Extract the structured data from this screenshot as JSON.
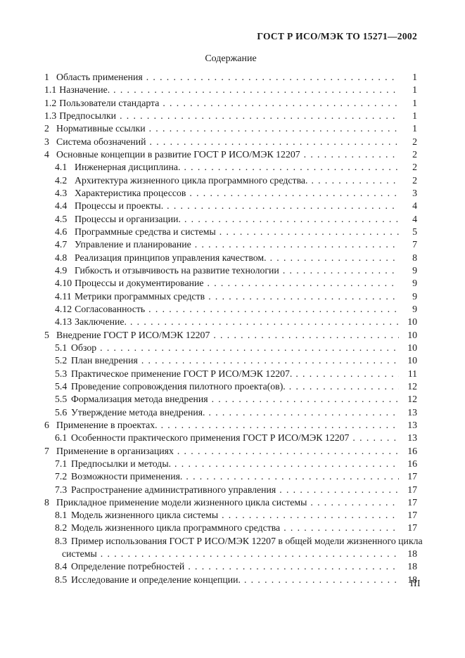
{
  "doc": {
    "header": "ГОСТ Р ИСО/МЭК ТО 15271—2002",
    "title": "Содержание",
    "footer_page": "III"
  },
  "toc": {
    "items": [
      {
        "num": "1",
        "level": 1,
        "label": "Область применения",
        "page": "1"
      },
      {
        "num": "1.1",
        "level": 1,
        "label": "Назначение.",
        "page": "1"
      },
      {
        "num": "1.2",
        "level": 1,
        "label": "Пользователи стандарта",
        "page": "1"
      },
      {
        "num": "1.3",
        "level": 1,
        "label": "Предпосылки",
        "page": "1"
      },
      {
        "num": "2",
        "level": 1,
        "label": "Нормативные ссылки",
        "page": "1"
      },
      {
        "num": "3",
        "level": 1,
        "label": "Система обозначений",
        "page": "2"
      },
      {
        "num": "4",
        "level": 1,
        "label": "Основные концепции в развитие ГОСТ Р ИСО/МЭК 12207",
        "page": "2"
      },
      {
        "num": "4.1",
        "level": 2,
        "wide": true,
        "label": "Инженерная дисциплина.",
        "page": "2"
      },
      {
        "num": "4.2",
        "level": 2,
        "wide": true,
        "label": "Архитектура жизненного цикла программного средства.",
        "page": "2"
      },
      {
        "num": "4.3",
        "level": 2,
        "wide": true,
        "label": "Характеристика процессов",
        "page": "3"
      },
      {
        "num": "4.4",
        "level": 2,
        "wide": true,
        "label": "Процессы и проекты.",
        "page": "4"
      },
      {
        "num": "4.5",
        "level": 2,
        "wide": true,
        "label": "Процессы и организации.",
        "page": "4"
      },
      {
        "num": "4.6",
        "level": 2,
        "wide": true,
        "label": "Программные средства и системы",
        "page": "5"
      },
      {
        "num": "4.7",
        "level": 2,
        "wide": true,
        "label": "Управление и планирование",
        "page": "7"
      },
      {
        "num": "4.8",
        "level": 2,
        "wide": true,
        "label": "Реализация принципов управления качеством.",
        "page": "8"
      },
      {
        "num": "4.9",
        "level": 2,
        "wide": true,
        "label": "Гибкость и отзывчивость на развитие технологии",
        "page": "9"
      },
      {
        "num": "4.10",
        "level": 2,
        "wide": true,
        "label": "Процессы и документирование",
        "page": "9"
      },
      {
        "num": "4.11",
        "level": 2,
        "wide": true,
        "label": "Метрики программных средств",
        "page": "9"
      },
      {
        "num": "4.12",
        "level": 2,
        "wide": true,
        "label": "Согласованность",
        "page": "9"
      },
      {
        "num": "4.13",
        "level": 2,
        "wide": true,
        "label": "Заключение.",
        "page": "10"
      },
      {
        "num": "5",
        "level": 1,
        "label": "Внедрение ГОСТ Р ИСО/МЭК 12207",
        "page": "10"
      },
      {
        "num": "5.1",
        "level": 2,
        "label": "Обзор",
        "page": "10"
      },
      {
        "num": "5.2",
        "level": 2,
        "label": "План внедрения",
        "page": "10"
      },
      {
        "num": "5.3",
        "level": 2,
        "label": "Практическое применение ГОСТ Р ИСО/МЭК 12207.",
        "page": "11"
      },
      {
        "num": "5.4",
        "level": 2,
        "label": "Проведение сопровождения пилотного проекта(ов).",
        "page": "12"
      },
      {
        "num": "5.5",
        "level": 2,
        "label": "Формализация метода внедрения",
        "page": "12"
      },
      {
        "num": "5.6",
        "level": 2,
        "label": "Утверждение метода внедрения.",
        "page": "13"
      },
      {
        "num": "6",
        "level": 1,
        "label": "Применение в проектах.",
        "page": "13"
      },
      {
        "num": "6.1",
        "level": 2,
        "label": "Особенности практического применения ГОСТ Р ИСО/МЭК 12207",
        "page": "13"
      },
      {
        "num": "7",
        "level": 1,
        "label": "Применение в организациях",
        "page": "16"
      },
      {
        "num": "7.1",
        "level": 2,
        "label": "Предпосылки и методы.",
        "page": "16"
      },
      {
        "num": "7.2",
        "level": 2,
        "label": "Возможности применения.",
        "page": "17"
      },
      {
        "num": "7.3",
        "level": 2,
        "label": "Распространение административного управления",
        "page": "17"
      },
      {
        "num": "8",
        "level": 1,
        "label": "Прикладное применение модели жизненного цикла системы",
        "page": "17"
      },
      {
        "num": "8.1",
        "level": 2,
        "label": "Модель жизненного цикла системы",
        "page": "17"
      },
      {
        "num": "8.2",
        "level": 2,
        "label": "Модель жизненного цикла программного средства",
        "page": "17"
      },
      {
        "num": "8.3",
        "level": 2,
        "label": "Пример использования ГОСТ Р ИСО/МЭК 12207 в общей модели жизненного цикла",
        "cont": "системы",
        "page": "18"
      },
      {
        "num": "8.4",
        "level": 2,
        "label": "Определение потребностей",
        "page": "18"
      },
      {
        "num": "8.5",
        "level": 2,
        "label": "Исследование и определение концепции.",
        "page": "18"
      }
    ]
  }
}
